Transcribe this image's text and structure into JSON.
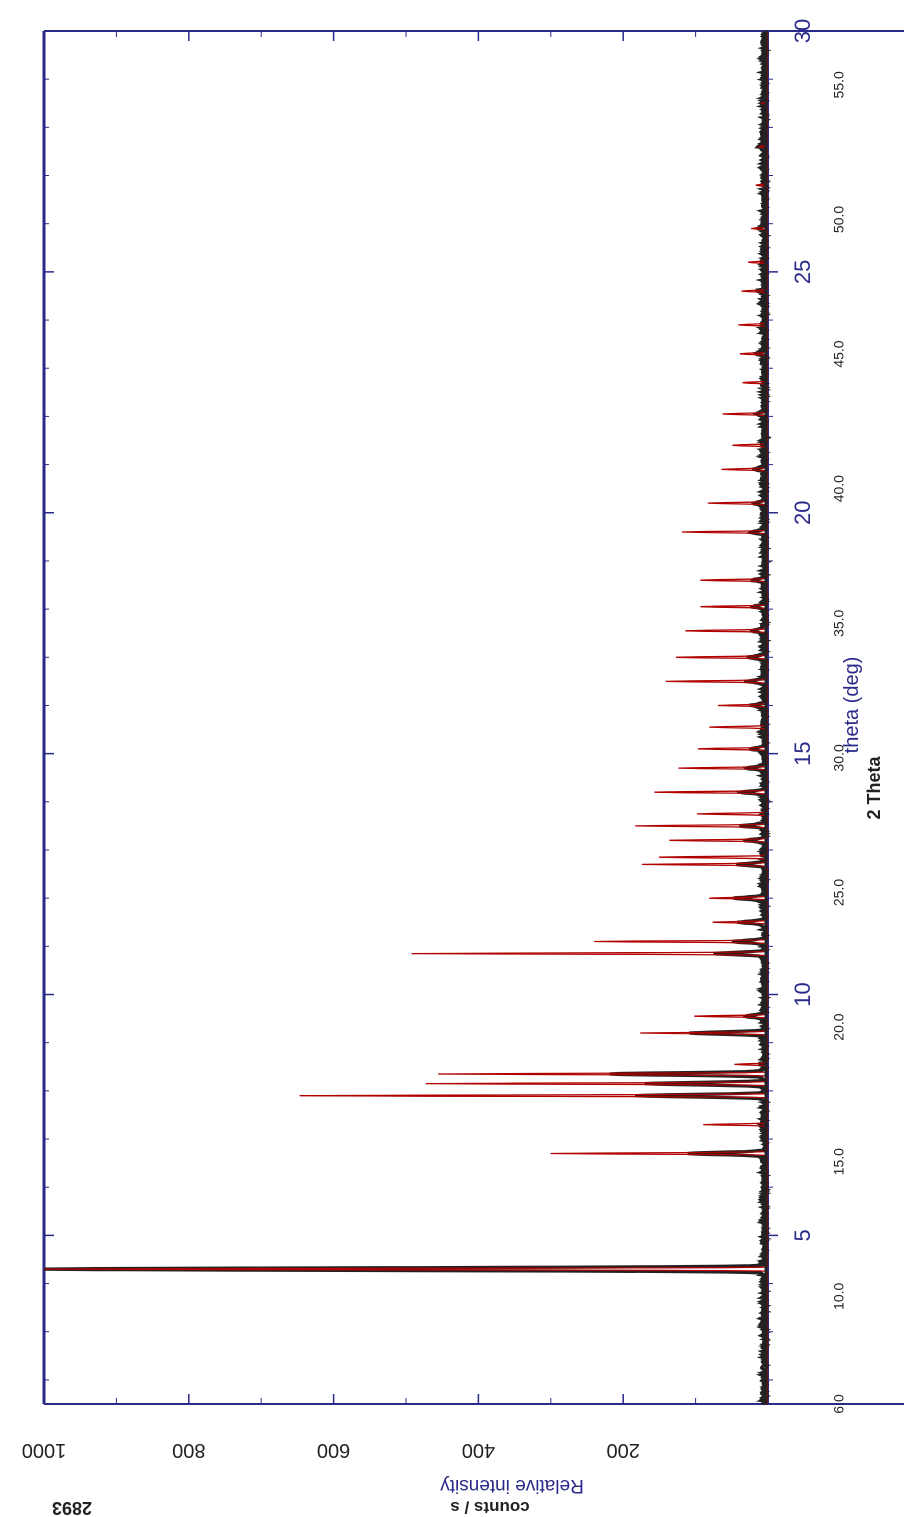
{
  "chart_data": {
    "type": "line",
    "colors": {
      "frame": "#2a2a8a",
      "measured": "#222222",
      "calculated": "#b00000"
    },
    "x_top_axis": {
      "label": "2 Theta",
      "range": [
        1.5,
        30
      ],
      "ticks": [
        "5",
        "10",
        "15",
        "20",
        "25",
        "30"
      ],
      "tick_values": [
        5,
        10,
        15,
        20,
        25,
        30
      ]
    },
    "x_bottom_axis": {
      "label": "theta (deg)",
      "range": [
        6.0,
        57.0
      ],
      "ticks": [
        "6.0",
        "10.0",
        "15.0",
        "20.0",
        "25.0",
        "30.0",
        "35.0",
        "40.0",
        "45.0",
        "50.0",
        "55.0"
      ],
      "tick_values": [
        6,
        10,
        15,
        20,
        25,
        30,
        35,
        40,
        45,
        50,
        55
      ]
    },
    "y_left_axis": {
      "label": "Relative intensity",
      "range": [
        0,
        1000
      ],
      "ticks": [
        "200",
        "400",
        "600",
        "800",
        "1000"
      ],
      "tick_values": [
        200,
        400,
        600,
        800,
        1000
      ]
    },
    "y_right_axis": {
      "label": "counts / s",
      "max_label": "2893"
    },
    "series": [
      {
        "color": "#b00000",
        "peaks": [
          {
            "x": 4.3,
            "y": 1000
          },
          {
            "x": 6.7,
            "y": 299
          },
          {
            "x": 7.3,
            "y": 88
          },
          {
            "x": 7.9,
            "y": 646
          },
          {
            "x": 8.15,
            "y": 472
          },
          {
            "x": 8.35,
            "y": 455
          },
          {
            "x": 8.55,
            "y": 45
          },
          {
            "x": 9.2,
            "y": 175
          },
          {
            "x": 9.55,
            "y": 101
          },
          {
            "x": 10.85,
            "y": 491
          },
          {
            "x": 11.1,
            "y": 239
          },
          {
            "x": 11.5,
            "y": 75
          },
          {
            "x": 12.0,
            "y": 80
          },
          {
            "x": 12.7,
            "y": 173
          },
          {
            "x": 12.85,
            "y": 150
          },
          {
            "x": 13.2,
            "y": 135
          },
          {
            "x": 13.5,
            "y": 182
          },
          {
            "x": 13.75,
            "y": 97
          },
          {
            "x": 14.2,
            "y": 156
          },
          {
            "x": 14.7,
            "y": 123
          },
          {
            "x": 15.1,
            "y": 96
          },
          {
            "x": 15.55,
            "y": 80
          },
          {
            "x": 16.0,
            "y": 68
          },
          {
            "x": 16.5,
            "y": 140
          },
          {
            "x": 17.0,
            "y": 126
          },
          {
            "x": 17.55,
            "y": 113
          },
          {
            "x": 18.05,
            "y": 92
          },
          {
            "x": 18.6,
            "y": 93
          },
          {
            "x": 19.6,
            "y": 118
          },
          {
            "x": 20.2,
            "y": 82
          },
          {
            "x": 20.9,
            "y": 63
          },
          {
            "x": 21.4,
            "y": 48
          },
          {
            "x": 22.05,
            "y": 62
          },
          {
            "x": 22.7,
            "y": 34
          },
          {
            "x": 23.3,
            "y": 38
          },
          {
            "x": 23.9,
            "y": 40
          },
          {
            "x": 24.6,
            "y": 36
          },
          {
            "x": 25.2,
            "y": 26
          },
          {
            "x": 25.9,
            "y": 22
          },
          {
            "x": 26.8,
            "y": 16
          },
          {
            "x": 27.6,
            "y": 12
          },
          {
            "x": 28.5,
            "y": 8
          }
        ]
      },
      {
        "color": "#222222",
        "peaks": [
          {
            "x": 4.3,
            "y": 1000
          },
          {
            "x": 6.7,
            "y": 103
          },
          {
            "x": 7.9,
            "y": 178
          },
          {
            "x": 8.15,
            "y": 165
          },
          {
            "x": 8.35,
            "y": 215
          },
          {
            "x": 9.2,
            "y": 100
          },
          {
            "x": 9.55,
            "y": 27
          },
          {
            "x": 10.85,
            "y": 68
          },
          {
            "x": 11.1,
            "y": 44
          },
          {
            "x": 11.5,
            "y": 34
          },
          {
            "x": 12.0,
            "y": 40
          },
          {
            "x": 12.7,
            "y": 37
          },
          {
            "x": 13.2,
            "y": 25
          },
          {
            "x": 13.5,
            "y": 31
          },
          {
            "x": 14.2,
            "y": 32
          },
          {
            "x": 14.7,
            "y": 26
          },
          {
            "x": 15.1,
            "y": 19
          },
          {
            "x": 16.0,
            "y": 16
          },
          {
            "x": 16.5,
            "y": 24
          },
          {
            "x": 17.0,
            "y": 20
          },
          {
            "x": 17.55,
            "y": 18
          },
          {
            "x": 18.05,
            "y": 15
          },
          {
            "x": 18.6,
            "y": 16
          },
          {
            "x": 19.6,
            "y": 18
          },
          {
            "x": 20.2,
            "y": 14
          },
          {
            "x": 20.9,
            "y": 12
          },
          {
            "x": 22.05,
            "y": 11
          },
          {
            "x": 23.3,
            "y": 9
          },
          {
            "x": 24.6,
            "y": 8
          },
          {
            "x": 25.9,
            "y": 6
          },
          {
            "x": 27.6,
            "y": 5
          }
        ]
      }
    ]
  }
}
